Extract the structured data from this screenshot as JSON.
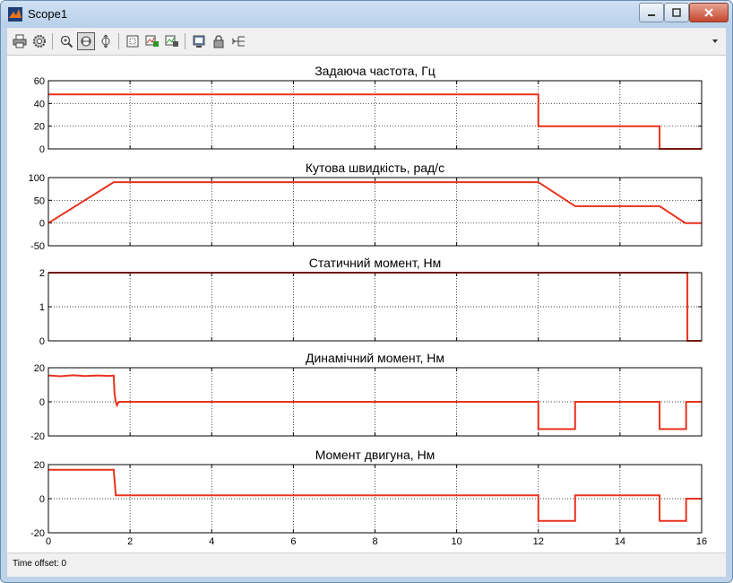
{
  "window": {
    "title": "Scope1",
    "icon": "matlab-icon",
    "controls": [
      "minimize-icon",
      "maximize-icon",
      "close-icon"
    ]
  },
  "toolbar": {
    "buttons": [
      {
        "name": "print-button",
        "icon": "printer-icon"
      },
      {
        "name": "parameters-button",
        "icon": "gear-icon"
      },
      {
        "name": "zoom-button",
        "icon": "zoom-in-icon"
      },
      {
        "name": "zoom-x-button",
        "icon": "zoom-x-icon",
        "selected": true
      },
      {
        "name": "zoom-y-button",
        "icon": "zoom-y-icon"
      },
      {
        "name": "autoscale-button",
        "icon": "autoscale-icon"
      },
      {
        "name": "save-axes-button",
        "icon": "save-axes-icon"
      },
      {
        "name": "restore-axes-button",
        "icon": "restore-axes-icon"
      },
      {
        "name": "floating-scope-button",
        "icon": "floating-scope-icon"
      },
      {
        "name": "lock-axes-button",
        "icon": "lock-icon"
      },
      {
        "name": "signal-selection-button",
        "icon": "signal-selection-icon"
      }
    ],
    "dock_arrow_icon": "dock-arrow-icon"
  },
  "status": {
    "time_offset_label": "Time offset:",
    "time_offset_value": "0"
  },
  "theme": {
    "line_color": "#e8321e",
    "grid_color": "#000000",
    "chrome": "#bcd3ea"
  },
  "chart_data": [
    {
      "type": "line",
      "title": "Задаюча частота, Гц",
      "xlim": [
        0,
        16
      ],
      "ylim": [
        0,
        60
      ],
      "yticks": [
        0,
        20,
        40,
        60
      ],
      "x": [
        0,
        12,
        12,
        14.97,
        14.97,
        16
      ],
      "y": [
        48,
        48,
        20,
        20,
        0,
        0
      ]
    },
    {
      "type": "line",
      "title": "Кутова швидкість, рад/с",
      "xlim": [
        0,
        16
      ],
      "ylim": [
        -50,
        100
      ],
      "yticks": [
        -50,
        0,
        50,
        100
      ],
      "x": [
        0,
        1.6,
        12,
        12.9,
        14.97,
        15.6,
        16
      ],
      "y": [
        0,
        90,
        90,
        37,
        37,
        0,
        0
      ]
    },
    {
      "type": "line",
      "title": "Статичний момент, Нм",
      "xlim": [
        0,
        16
      ],
      "ylim": [
        0,
        2
      ],
      "yticks": [
        0,
        1,
        2
      ],
      "x": [
        0,
        15.65,
        15.65,
        16
      ],
      "y": [
        2,
        2,
        0,
        0
      ]
    },
    {
      "type": "line",
      "title": "Динамічний момент, Нм",
      "xlim": [
        0,
        16
      ],
      "ylim": [
        -20,
        20
      ],
      "yticks": [
        -20,
        0,
        20
      ],
      "x": [
        0,
        0.3,
        0.6,
        0.9,
        1.2,
        1.5,
        1.6,
        1.62,
        1.65,
        1.68,
        1.72,
        12,
        12,
        12.9,
        12.9,
        14.97,
        14.97,
        15.62,
        15.62,
        16
      ],
      "y": [
        15.5,
        15.0,
        15.6,
        15.1,
        15.5,
        15.2,
        15.4,
        5,
        0,
        -2,
        0,
        0,
        -16,
        -16,
        0,
        0,
        -16,
        -16,
        0,
        0
      ]
    },
    {
      "type": "line",
      "title": "Момент двигуна, Нм",
      "xlim": [
        0,
        16
      ],
      "ylim": [
        -20,
        20
      ],
      "yticks": [
        -20,
        0,
        20
      ],
      "xticks": [
        0,
        2,
        4,
        6,
        8,
        10,
        12,
        14,
        16
      ],
      "x": [
        0,
        1.6,
        1.65,
        12,
        12,
        12.9,
        12.9,
        14.97,
        14.97,
        15.62,
        15.62,
        16
      ],
      "y": [
        17,
        17,
        2,
        2,
        -13,
        -13,
        2,
        2,
        -13,
        -13,
        0,
        0
      ]
    }
  ]
}
